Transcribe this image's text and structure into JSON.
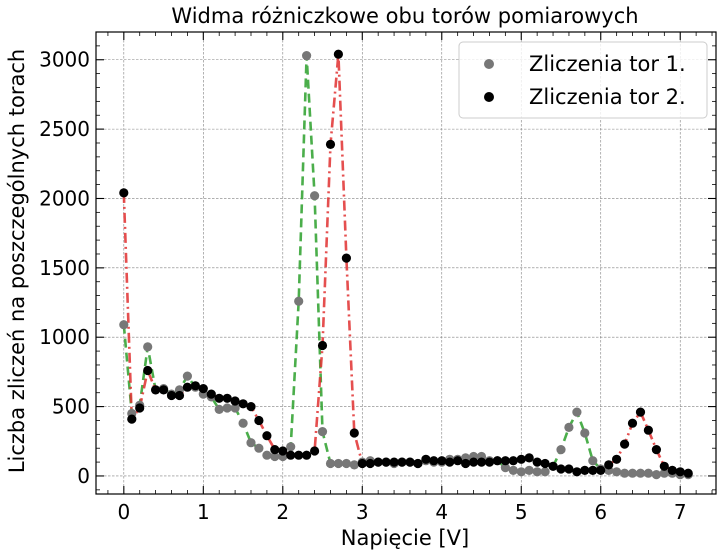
{
  "chart_data": {
    "type": "line",
    "title": "Widma różniczkowe obu torów pomiarowych",
    "xlabel": "Napięcie [V]",
    "ylabel": "Liczba zliczeń na poszczególnych torach",
    "xlim": [
      -0.35,
      7.45
    ],
    "ylim": [
      -130,
      3200
    ],
    "xticks": [
      "0",
      "1",
      "2",
      "3",
      "4",
      "5",
      "6",
      "7"
    ],
    "yticks": [
      "0",
      "500",
      "1000",
      "1500",
      "2000",
      "2500",
      "3000"
    ],
    "grid": true,
    "legend_position": "top-right",
    "series": [
      {
        "name": "Zliczenia tor 1.",
        "marker_color": "#777777",
        "line_color": "#2ca02c",
        "x": [
          0,
          0.1,
          0.2,
          0.3,
          0.4,
          0.5,
          0.6,
          0.7,
          0.8,
          0.9,
          1.0,
          1.1,
          1.2,
          1.3,
          1.4,
          1.5,
          1.6,
          1.7,
          1.8,
          1.9,
          2.0,
          2.1,
          2.2,
          2.3,
          2.4,
          2.5,
          2.6,
          2.7,
          2.8,
          2.9,
          3.0,
          3.1,
          3.2,
          3.3,
          3.4,
          3.5,
          3.6,
          3.7,
          3.8,
          3.9,
          4.0,
          4.1,
          4.2,
          4.3,
          4.4,
          4.5,
          4.6,
          4.7,
          4.8,
          4.9,
          5.0,
          5.1,
          5.2,
          5.3,
          5.4,
          5.5,
          5.6,
          5.7,
          5.8,
          5.9,
          6.0,
          6.1,
          6.2,
          6.3,
          6.4,
          6.5,
          6.6,
          6.7,
          6.8,
          6.9,
          7.0,
          7.1
        ],
        "y": [
          1090,
          450,
          510,
          930,
          620,
          630,
          590,
          620,
          720,
          640,
          590,
          570,
          480,
          490,
          490,
          380,
          240,
          200,
          150,
          140,
          140,
          210,
          1260,
          3030,
          2020,
          320,
          90,
          90,
          90,
          80,
          100,
          110,
          100,
          100,
          90,
          100,
          100,
          90,
          110,
          100,
          100,
          120,
          120,
          130,
          140,
          140,
          110,
          110,
          60,
          40,
          30,
          40,
          30,
          30,
          70,
          190,
          350,
          460,
          310,
          110,
          50,
          40,
          30,
          20,
          20,
          20,
          20,
          10,
          20,
          20,
          10,
          10
        ]
      },
      {
        "name": "Zliczenia tor 2.",
        "marker_color": "#000000",
        "line_color": "#e03030",
        "x": [
          0,
          0.1,
          0.2,
          0.3,
          0.4,
          0.5,
          0.6,
          0.7,
          0.8,
          0.9,
          1.0,
          1.1,
          1.2,
          1.3,
          1.4,
          1.5,
          1.6,
          1.7,
          1.8,
          1.9,
          2.0,
          2.1,
          2.2,
          2.3,
          2.4,
          2.5,
          2.6,
          2.7,
          2.8,
          2.9,
          3.0,
          3.1,
          3.2,
          3.3,
          3.4,
          3.5,
          3.6,
          3.7,
          3.8,
          3.9,
          4.0,
          4.1,
          4.2,
          4.3,
          4.4,
          4.5,
          4.6,
          4.7,
          4.8,
          4.9,
          5.0,
          5.1,
          5.2,
          5.3,
          5.4,
          5.5,
          5.6,
          5.7,
          5.8,
          5.9,
          6.0,
          6.1,
          6.2,
          6.3,
          6.4,
          6.5,
          6.6,
          6.7,
          6.8,
          6.9,
          7.0,
          7.1
        ],
        "y": [
          2040,
          410,
          490,
          760,
          620,
          620,
          580,
          580,
          640,
          650,
          630,
          590,
          560,
          560,
          540,
          520,
          500,
          400,
          290,
          190,
          180,
          150,
          150,
          150,
          180,
          940,
          2390,
          3040,
          1570,
          310,
          90,
          90,
          100,
          100,
          100,
          100,
          100,
          90,
          120,
          110,
          110,
          100,
          110,
          90,
          100,
          100,
          100,
          110,
          110,
          110,
          120,
          130,
          100,
          90,
          70,
          50,
          50,
          30,
          40,
          40,
          40,
          80,
          120,
          230,
          380,
          460,
          330,
          190,
          70,
          40,
          30,
          20
        ]
      }
    ]
  }
}
